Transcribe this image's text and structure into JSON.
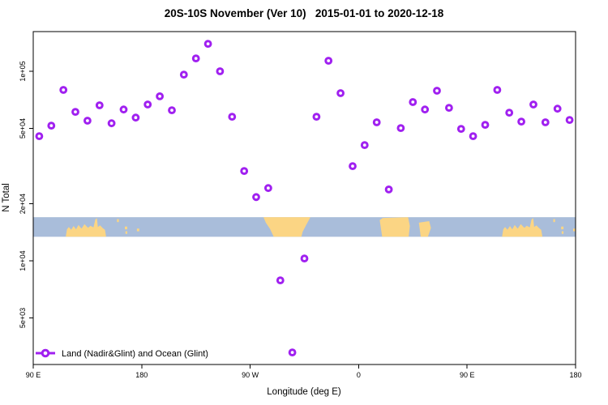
{
  "chart_data": {
    "type": "scatter",
    "title": "20S-10S November (Ver 10)   2015-01-01 to 2020-12-18",
    "xlabel": "Longitude (deg E)",
    "ylabel": "N Total",
    "x_domain": [
      90,
      540
    ],
    "ylim": [
      2840,
      162000
    ],
    "y_scale": "log",
    "grid": "off",
    "x_ticks": [
      {
        "deg": 90,
        "label": "90 E"
      },
      {
        "deg": 180,
        "label": "180"
      },
      {
        "deg": 270,
        "label": "90 W"
      },
      {
        "deg": 360,
        "label": "0"
      },
      {
        "deg": 450,
        "label": "90 E"
      },
      {
        "deg": 540,
        "label": "180"
      }
    ],
    "y_ticks": [
      {
        "value": 100000,
        "label": "1e+05"
      },
      {
        "value": 50000,
        "label": "5e+04"
      },
      {
        "value": 20000,
        "label": "2e+04"
      },
      {
        "value": 10000,
        "label": "1e+04"
      },
      {
        "value": 5000,
        "label": "5e+03"
      }
    ],
    "legend": {
      "label": "Land (Nadir&Glint) and Ocean (Glint)",
      "position": "bottom-left"
    },
    "colors": {
      "point": "#A020F0",
      "ocean": "#a9bdda",
      "land": "#fbd584",
      "axis": "#000000"
    },
    "series": [
      {
        "name": "Land (Nadir&Glint) and Ocean (Glint)",
        "marker": "open-circle",
        "points": [
          [
            95,
            45500
          ],
          [
            105,
            51700
          ],
          [
            115,
            79800
          ],
          [
            125,
            61100
          ],
          [
            135,
            54900
          ],
          [
            145,
            66200
          ],
          [
            155,
            53200
          ],
          [
            165,
            62900
          ],
          [
            175,
            57000
          ],
          [
            185,
            66800
          ],
          [
            195,
            73800
          ],
          [
            205,
            62300
          ],
          [
            215,
            96100
          ],
          [
            225,
            117000
          ],
          [
            235,
            139700
          ],
          [
            245,
            100000
          ],
          [
            255,
            57600
          ],
          [
            265,
            29800
          ],
          [
            275,
            21700
          ],
          [
            285,
            24200
          ],
          [
            295,
            7890
          ],
          [
            305,
            3290
          ],
          [
            315,
            10300
          ],
          [
            325,
            57600
          ],
          [
            335,
            113700
          ],
          [
            345,
            76700
          ],
          [
            355,
            31600
          ],
          [
            365,
            40800
          ],
          [
            375,
            53800
          ],
          [
            385,
            23800
          ],
          [
            395,
            50200
          ],
          [
            405,
            68800
          ],
          [
            415,
            62900
          ],
          [
            425,
            79000
          ],
          [
            435,
            64200
          ],
          [
            445,
            49700
          ],
          [
            455,
            45500
          ],
          [
            465,
            52200
          ],
          [
            475,
            79800
          ],
          [
            485,
            60500
          ],
          [
            495,
            54300
          ],
          [
            505,
            66800
          ],
          [
            515,
            53800
          ],
          [
            525,
            63500
          ],
          [
            535,
            55400
          ]
        ]
      }
    ],
    "map_band": {
      "description": "world coastline strip for 20S-10S latitude",
      "value_top": 17000,
      "value_bottom": 13400,
      "land_polygons": [
        {
          "name": "australia",
          "points": [
            [
              117,
              1
            ],
            [
              118,
              0.62
            ],
            [
              119.5,
              0.5
            ],
            [
              121.5,
              0.64
            ],
            [
              123.5,
              0.45
            ],
            [
              125.5,
              0.62
            ],
            [
              127.5,
              0.4
            ],
            [
              130,
              0.58
            ],
            [
              132.5,
              0.36
            ],
            [
              135.5,
              0.54
            ],
            [
              137.5,
              0.44
            ],
            [
              140,
              0.52
            ],
            [
              141.5,
              0.12
            ],
            [
              142.8,
              0.05
            ],
            [
              143.6,
              0.5
            ],
            [
              145.5,
              0.42
            ],
            [
              147.5,
              0.55
            ],
            [
              149.5,
              0.65
            ],
            [
              150.5,
              1
            ]
          ]
        },
        {
          "name": "island-a",
          "points": [
            [
              159.5,
              0.1
            ],
            [
              161,
              0.1
            ],
            [
              161,
              0.25
            ],
            [
              159.5,
              0.25
            ]
          ]
        },
        {
          "name": "island-b",
          "points": [
            [
              166,
              0.48
            ],
            [
              168,
              0.48
            ],
            [
              168,
              0.62
            ],
            [
              166,
              0.62
            ]
          ]
        },
        {
          "name": "island-c",
          "points": [
            [
              166.5,
              0.72
            ],
            [
              168,
              0.72
            ],
            [
              168,
              0.85
            ],
            [
              166.5,
              0.85
            ]
          ]
        },
        {
          "name": "island-d",
          "points": [
            [
              176,
              0.58
            ],
            [
              178,
              0.58
            ],
            [
              178,
              0.72
            ],
            [
              176,
              0.72
            ]
          ]
        },
        {
          "name": "south-america",
          "points": [
            [
              281,
              0
            ],
            [
              320,
              0
            ],
            [
              316.5,
              0.4
            ],
            [
              313.5,
              0.75
            ],
            [
              312.5,
              1
            ],
            [
              289.5,
              1
            ],
            [
              286.5,
              0.6
            ],
            [
              283,
              0.28
            ]
          ]
        },
        {
          "name": "africa",
          "points": [
            [
              377.5,
              0.15
            ],
            [
              380,
              0.04
            ],
            [
              401,
              0
            ],
            [
              402.5,
              0.45
            ],
            [
              401.5,
              1
            ],
            [
              379.5,
              1
            ]
          ]
        },
        {
          "name": "madagascar",
          "points": [
            [
              410,
              0.28
            ],
            [
              418.5,
              0.2
            ],
            [
              420,
              0.55
            ],
            [
              417.5,
              1
            ],
            [
              411.5,
              1
            ]
          ]
        },
        {
          "name": "australia-wrap",
          "points": [
            [
              479,
              1
            ],
            [
              480,
              0.62
            ],
            [
              481.5,
              0.5
            ],
            [
              483.5,
              0.64
            ],
            [
              485.5,
              0.45
            ],
            [
              487.5,
              0.62
            ],
            [
              489.5,
              0.4
            ],
            [
              492,
              0.58
            ],
            [
              494.5,
              0.36
            ],
            [
              497.5,
              0.54
            ],
            [
              499.5,
              0.44
            ],
            [
              502,
              0.52
            ],
            [
              503.5,
              0.12
            ],
            [
              504.8,
              0.05
            ],
            [
              505.6,
              0.5
            ],
            [
              507.5,
              0.42
            ],
            [
              509.5,
              0.55
            ],
            [
              511.5,
              0.65
            ],
            [
              512.5,
              1
            ]
          ]
        },
        {
          "name": "island-a-wrap",
          "points": [
            [
              521.5,
              0.1
            ],
            [
              523,
              0.1
            ],
            [
              523,
              0.25
            ],
            [
              521.5,
              0.25
            ]
          ]
        },
        {
          "name": "island-b-wrap",
          "points": [
            [
              528,
              0.48
            ],
            [
              530,
              0.48
            ],
            [
              530,
              0.62
            ],
            [
              528,
              0.62
            ]
          ]
        },
        {
          "name": "island-c-wrap",
          "points": [
            [
              528.5,
              0.72
            ],
            [
              530,
              0.72
            ],
            [
              530,
              0.85
            ],
            [
              528.5,
              0.85
            ]
          ]
        },
        {
          "name": "island-d-wrap",
          "points": [
            [
              538,
              0.58
            ],
            [
              539.8,
              0.58
            ],
            [
              539.8,
              0.72
            ],
            [
              538,
              0.72
            ]
          ]
        }
      ]
    }
  }
}
